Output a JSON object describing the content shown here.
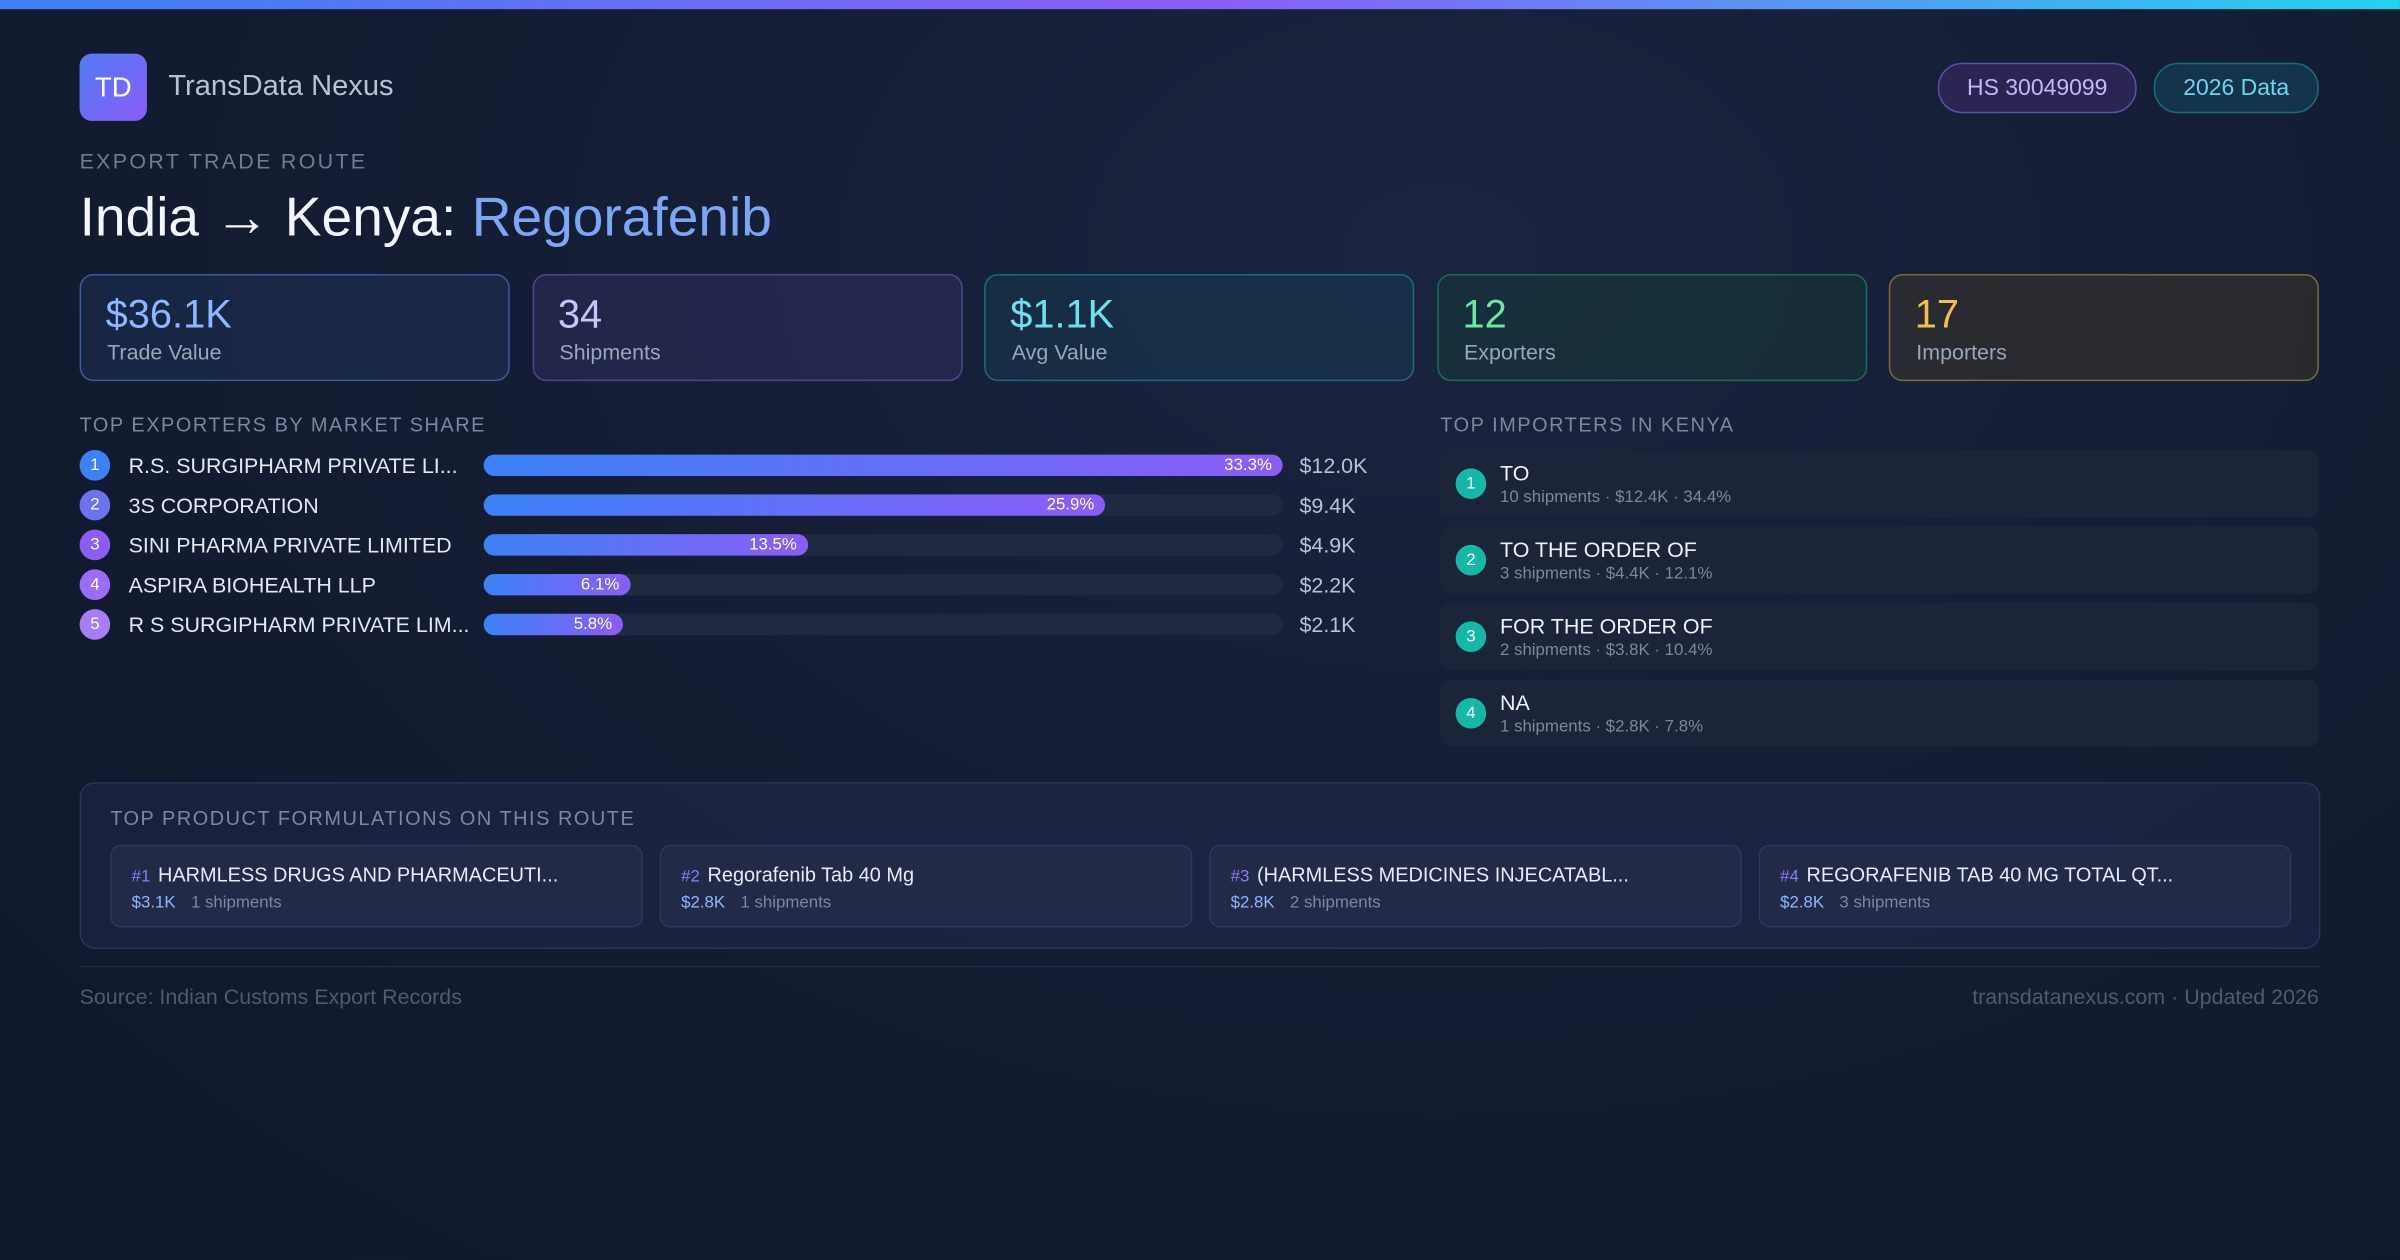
{
  "header": {
    "logo": "TD",
    "brand": "TransData Nexus",
    "badges": [
      "HS 30049099",
      "2026 Data"
    ],
    "eyebrow": "EXPORT TRADE ROUTE",
    "title_prefix": "India → Kenya:",
    "title_product": "Regorafenib"
  },
  "stats": [
    {
      "value": "$36.1K",
      "label": "Trade Value"
    },
    {
      "value": "34",
      "label": "Shipments"
    },
    {
      "value": "$1.1K",
      "label": "Avg Value"
    },
    {
      "value": "12",
      "label": "Exporters"
    },
    {
      "value": "17",
      "label": "Importers"
    }
  ],
  "exporters": {
    "title": "TOP EXPORTERS BY MARKET SHARE",
    "ranks": [
      "1",
      "2",
      "3",
      "4",
      "5"
    ],
    "names": [
      "R.S. SURGIPHARM PRIVATE LI...",
      "3S CORPORATION",
      "SINI PHARMA PRIVATE LIMITED",
      "ASPIRA BIOHEALTH LLP",
      "R S SURGIPHARM PRIVATE LIM..."
    ],
    "values": [
      33.3,
      25.9,
      13.5,
      6.1,
      5.8
    ],
    "value_labels": [
      "33.3%",
      "25.9%",
      "13.5%",
      "6.1%",
      "5.8%"
    ],
    "amounts": [
      "$12.0K",
      "$9.4K",
      "$4.9K",
      "$2.2K",
      "$2.1K"
    ]
  },
  "importers": {
    "title": "TOP IMPORTERS IN KENYA",
    "items": [
      {
        "rank": "1",
        "name": "TO",
        "detail": "10 shipments · $12.4K · 34.4%"
      },
      {
        "rank": "2",
        "name": "TO THE ORDER OF",
        "detail": "3 shipments · $4.4K · 12.1%"
      },
      {
        "rank": "3",
        "name": "FOR THE ORDER OF",
        "detail": "2 shipments · $3.8K · 10.4%"
      },
      {
        "rank": "4",
        "name": "NA",
        "detail": "1 shipments · $2.8K · 7.8%"
      }
    ]
  },
  "formulations": {
    "title": "TOP PRODUCT FORMULATIONS ON THIS ROUTE",
    "items": [
      {
        "rank": "#1",
        "name": "HARMLESS DRUGS AND PHARMACEUTI...",
        "value": "$3.1K",
        "shipments": "1 shipments"
      },
      {
        "rank": "#2",
        "name": "Regorafenib Tab 40 Mg",
        "value": "$2.8K",
        "shipments": "1 shipments"
      },
      {
        "rank": "#3",
        "name": "(HARMLESS MEDICINES INJECATABL...",
        "value": "$2.8K",
        "shipments": "2 shipments"
      },
      {
        "rank": "#4",
        "name": "REGORAFENIB TAB 40 MG TOTAL QT...",
        "value": "$2.8K",
        "shipments": "3 shipments"
      }
    ]
  },
  "footer": {
    "source": "Source: Indian Customs Export Records",
    "site": "transdatanexus.com · Updated 2026"
  }
}
